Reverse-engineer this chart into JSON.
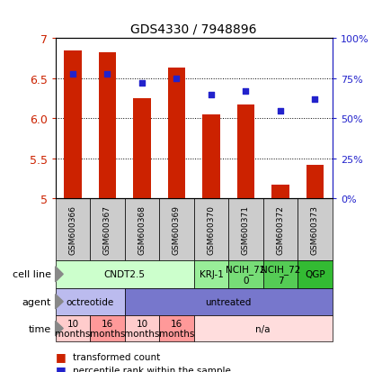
{
  "title": "GDS4330 / 7948896",
  "samples": [
    "GSM600366",
    "GSM600367",
    "GSM600368",
    "GSM600369",
    "GSM600370",
    "GSM600371",
    "GSM600372",
    "GSM600373"
  ],
  "bar_values": [
    6.85,
    6.83,
    6.25,
    6.63,
    6.05,
    6.17,
    5.17,
    5.42
  ],
  "dot_values": [
    78,
    78,
    72,
    75,
    65,
    67,
    55,
    62
  ],
  "ylim": [
    5.0,
    7.0
  ],
  "y2lim": [
    0,
    100
  ],
  "yticks": [
    5.0,
    5.5,
    6.0,
    6.5,
    7.0
  ],
  "y2ticks": [
    0,
    25,
    50,
    75,
    100
  ],
  "y2ticklabels": [
    "0%",
    "25%",
    "50%",
    "75%",
    "100%"
  ],
  "bar_color": "#cc2200",
  "dot_color": "#2222cc",
  "bar_bottom": 5.0,
  "sample_box_color": "#cccccc",
  "cell_line_groups": [
    {
      "label": "CNDT2.5",
      "start": 0,
      "end": 4,
      "color": "#ccffcc"
    },
    {
      "label": "KRJ-1",
      "start": 4,
      "end": 5,
      "color": "#99ee99"
    },
    {
      "label": "NCIH_72\n0",
      "start": 5,
      "end": 6,
      "color": "#77dd77"
    },
    {
      "label": "NCIH_72\n7",
      "start": 6,
      "end": 7,
      "color": "#55cc55"
    },
    {
      "label": "QGP",
      "start": 7,
      "end": 8,
      "color": "#33bb33"
    }
  ],
  "agent_groups": [
    {
      "label": "octreotide",
      "start": 0,
      "end": 2,
      "color": "#bbbbee"
    },
    {
      "label": "untreated",
      "start": 2,
      "end": 8,
      "color": "#7777cc"
    }
  ],
  "time_groups": [
    {
      "label": "10\nmonths",
      "start": 0,
      "end": 1,
      "color": "#ffcccc"
    },
    {
      "label": "16\nmonths",
      "start": 1,
      "end": 2,
      "color": "#ff9999"
    },
    {
      "label": "10\nmonths",
      "start": 2,
      "end": 3,
      "color": "#ffcccc"
    },
    {
      "label": "16\nmonths",
      "start": 3,
      "end": 4,
      "color": "#ff9999"
    },
    {
      "label": "n/a",
      "start": 4,
      "end": 8,
      "color": "#ffdddd"
    }
  ],
  "row_labels": [
    "cell line",
    "agent",
    "time"
  ],
  "legend_items": [
    {
      "color": "#cc2200",
      "label": "transformed count"
    },
    {
      "color": "#2222cc",
      "label": "percentile rank within the sample"
    }
  ]
}
